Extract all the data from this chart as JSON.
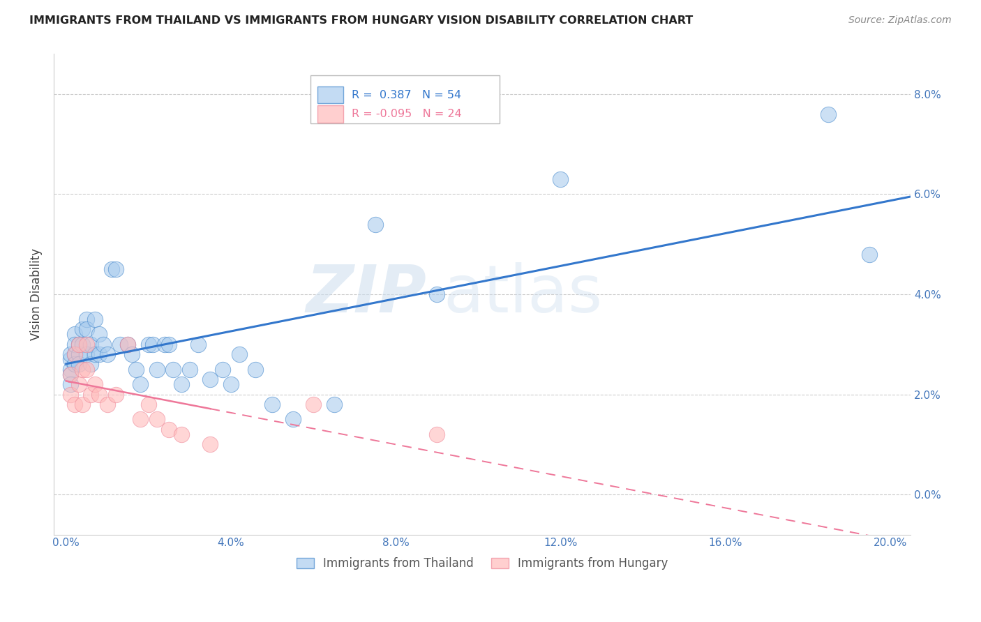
{
  "title": "IMMIGRANTS FROM THAILAND VS IMMIGRANTS FROM HUNGARY VISION DISABILITY CORRELATION CHART",
  "source": "Source: ZipAtlas.com",
  "ylabel": "Vision Disability",
  "xlim": [
    -0.003,
    0.205
  ],
  "ylim": [
    -0.008,
    0.088
  ],
  "yticks": [
    0.0,
    0.02,
    0.04,
    0.06,
    0.08
  ],
  "xticks": [
    0.0,
    0.04,
    0.08,
    0.12,
    0.16,
    0.2
  ],
  "R_thailand": 0.387,
  "N_thailand": 54,
  "R_hungary": -0.095,
  "N_hungary": 24,
  "color_thailand": "#AACCEE",
  "color_hungary": "#FFBBBB",
  "edge_thailand": "#4488CC",
  "edge_hungary": "#EE8899",
  "line_color_thailand": "#3377CC",
  "line_color_hungary": "#EE7799",
  "axis_color": "#4477BB",
  "grid_color": "#CCCCCC",
  "title_color": "#222222",
  "source_color": "#888888",
  "thai_x": [
    0.001,
    0.001,
    0.001,
    0.001,
    0.001,
    0.002,
    0.002,
    0.002,
    0.002,
    0.003,
    0.003,
    0.003,
    0.004,
    0.004,
    0.005,
    0.005,
    0.005,
    0.006,
    0.006,
    0.007,
    0.007,
    0.008,
    0.008,
    0.009,
    0.01,
    0.011,
    0.012,
    0.013,
    0.015,
    0.016,
    0.017,
    0.018,
    0.02,
    0.021,
    0.022,
    0.024,
    0.025,
    0.026,
    0.028,
    0.03,
    0.032,
    0.035,
    0.038,
    0.04,
    0.042,
    0.046,
    0.05,
    0.055,
    0.065,
    0.075,
    0.09,
    0.12,
    0.185,
    0.195
  ],
  "thai_y": [
    0.025,
    0.027,
    0.024,
    0.022,
    0.028,
    0.028,
    0.026,
    0.032,
    0.03,
    0.03,
    0.028,
    0.026,
    0.033,
    0.03,
    0.035,
    0.033,
    0.028,
    0.03,
    0.026,
    0.035,
    0.028,
    0.032,
    0.028,
    0.03,
    0.028,
    0.045,
    0.045,
    0.03,
    0.03,
    0.028,
    0.025,
    0.022,
    0.03,
    0.03,
    0.025,
    0.03,
    0.03,
    0.025,
    0.022,
    0.025,
    0.03,
    0.023,
    0.025,
    0.022,
    0.028,
    0.025,
    0.018,
    0.015,
    0.018,
    0.054,
    0.04,
    0.063,
    0.076,
    0.048
  ],
  "hung_x": [
    0.001,
    0.001,
    0.002,
    0.002,
    0.003,
    0.003,
    0.004,
    0.004,
    0.005,
    0.005,
    0.006,
    0.007,
    0.008,
    0.01,
    0.012,
    0.015,
    0.018,
    0.02,
    0.022,
    0.025,
    0.028,
    0.035,
    0.06,
    0.09
  ],
  "hung_y": [
    0.024,
    0.02,
    0.028,
    0.018,
    0.03,
    0.022,
    0.025,
    0.018,
    0.03,
    0.025,
    0.02,
    0.022,
    0.02,
    0.018,
    0.02,
    0.03,
    0.015,
    0.018,
    0.015,
    0.013,
    0.012,
    0.01,
    0.018,
    0.012
  ]
}
